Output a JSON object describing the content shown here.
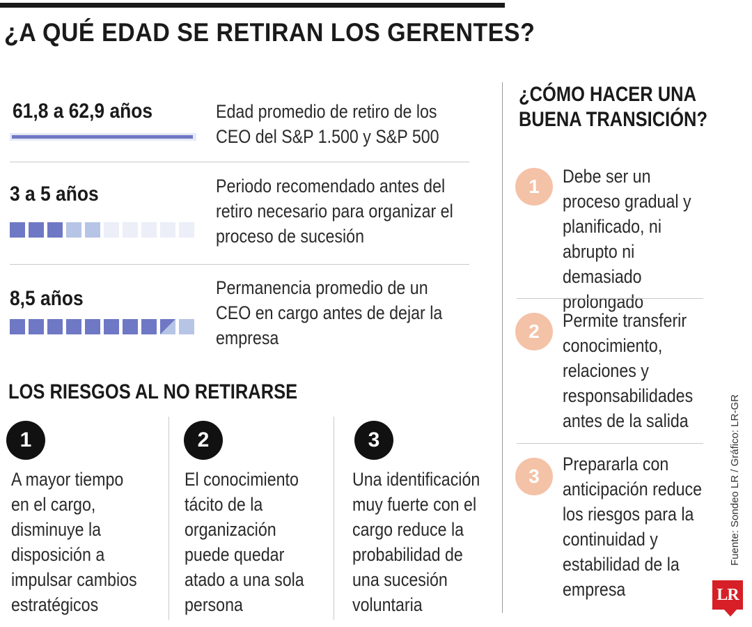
{
  "title": "¿A QUÉ EDAD SE RETIRAN LOS GERENTES?",
  "stats": [
    {
      "value": "61,8 a 62,9 años",
      "description": "Edad promedio de retiro de los CEO del S&P 1.500 y S&P 500"
    },
    {
      "value": "3 a 5 años",
      "description": "Periodo recomendado antes del retiro necesario para organizar el proceso de sucesión",
      "squares": {
        "total": 10,
        "dark": 3,
        "light": 2
      }
    },
    {
      "value": "8,5 años",
      "description": "Permanencia promedio de un CEO en cargo antes de dejar la empresa",
      "squares": {
        "total": 10,
        "dark": 8,
        "half": 1,
        "light": 1
      }
    }
  ],
  "risks": {
    "title": "LOS RIESGOS AL NO RETIRARSE",
    "items": [
      {
        "number": "1",
        "text": "A mayor tiempo en el cargo, disminuye la disposición a impulsar cambios estratégicos"
      },
      {
        "number": "2",
        "text": "El conocimiento tácito de la organización puede quedar atado a una sola persona"
      },
      {
        "number": "3",
        "text": "Una identificación muy fuerte con el cargo reduce la probabilidad de una sucesión voluntaria"
      }
    ]
  },
  "transition": {
    "title": "¿CÓMO HACER UNA BUENA TRANSICIÓN?",
    "steps": [
      {
        "number": "1",
        "text": "Debe ser un proceso gradual y planificado, ni abrupto ni demasiado prolongado"
      },
      {
        "number": "2",
        "text": "Permite transferir conocimiento, relaciones y responsabilidades antes de la salida"
      },
      {
        "number": "3",
        "text": "Prepararla con anticipación reduce los riesgos para la continuidad y estabilidad de la empresa"
      }
    ]
  },
  "source": "Fuente: Sondeo LR / Gráfico: LR-GR",
  "logo": "LR",
  "colors": {
    "bar_dark": "#6f78c4",
    "bar_light": "#b6c4e6",
    "bar_empty": "#eceef8",
    "step_circle": "#f4c2a7",
    "risk_circle": "#111111",
    "logo_red": "#d61f26"
  }
}
